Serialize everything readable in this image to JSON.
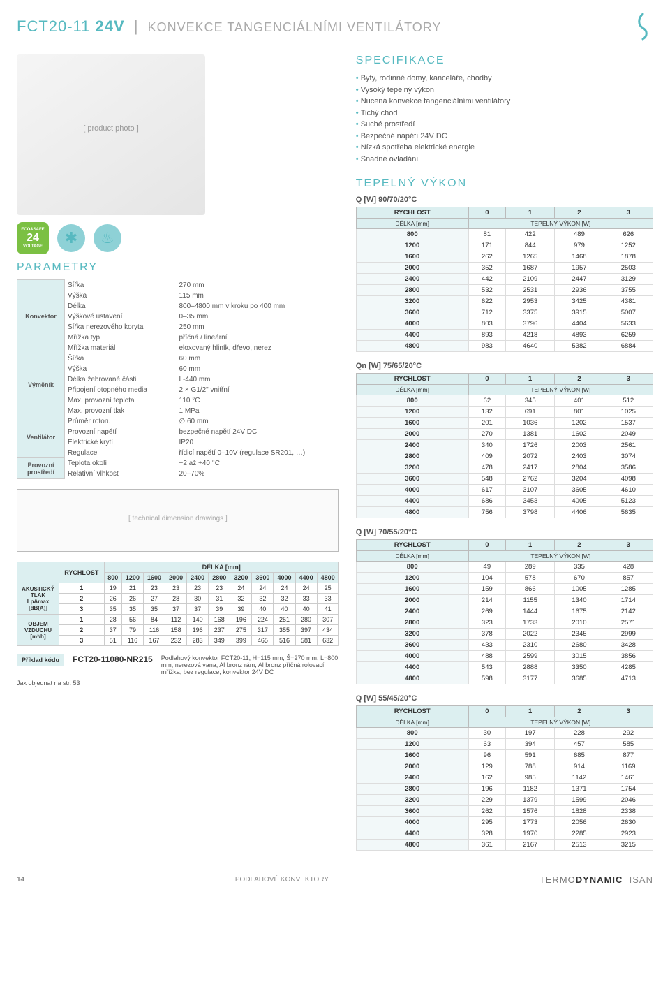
{
  "header": {
    "model": "FCT20-11",
    "voltage": "24V",
    "subtitle": "KONVEKCE TANGENCIÁLNÍMI VENTILÁTORY"
  },
  "spec": {
    "heading": "SPECIFIKACE",
    "items": [
      "Byty, rodinné domy, kanceláře, chodby",
      "Vysoký tepelný výkon",
      "Nucená konvekce tangenciálními ventilátory",
      "Tichý chod",
      "Suché prostředí",
      "Bezpečné napětí 24V DC",
      "Nízká spotřeba elektrické energie",
      "Snadné ovládání"
    ]
  },
  "badges": {
    "eco_top": "ECO&SAFE",
    "eco_num": "24",
    "eco_bot": "VOLTAGE"
  },
  "params": {
    "heading": "PARAMETRY",
    "groups": [
      {
        "label": "Konvektor",
        "rows": [
          [
            "Šířka",
            "270 mm"
          ],
          [
            "Výška",
            "115 mm"
          ],
          [
            "Délka",
            "800–4800 mm v kroku po 400 mm"
          ],
          [
            "Výškové ustavení",
            "0–35 mm"
          ],
          [
            "Šířka nerezového koryta",
            "250 mm"
          ],
          [
            "Mřížka typ",
            "příčná / lineární"
          ],
          [
            "Mřížka materiál",
            "eloxovaný hliník, dřevo, nerez"
          ]
        ]
      },
      {
        "label": "Výměník",
        "rows": [
          [
            "Šířka",
            "60 mm"
          ],
          [
            "Výška",
            "60 mm"
          ],
          [
            "Délka žebrované části",
            "L-440 mm"
          ],
          [
            "Připojení otopného media",
            "2 × G1/2\" vnitřní"
          ],
          [
            "Max. provozní teplota",
            "110 °C"
          ],
          [
            "Max. provozní tlak",
            "1 MPa"
          ]
        ]
      },
      {
        "label": "Ventilátor",
        "rows": [
          [
            "Průměr rotoru",
            "∅ 60 mm"
          ],
          [
            "Provozní napětí",
            "bezpečné napětí 24V DC"
          ],
          [
            "Elektrické krytí",
            "IP20"
          ],
          [
            "Regulace",
            "řídicí napětí 0–10V (regulace SR201, …)"
          ]
        ]
      },
      {
        "label": "Provozní prostředí",
        "rows": [
          [
            "Teplota okolí",
            "+2 až +40 °C"
          ],
          [
            "Relativní vlhkost",
            "20–70%"
          ]
        ]
      }
    ]
  },
  "diagram_placeholder": "[ technical dimension drawings ]",
  "acoustic": {
    "row_labels": [
      "AKUSTICKÝ TLAK LpAmax [dB(A)]",
      "OBJEM VZDUCHU [m³/h]"
    ],
    "speed_label": "RYCHLOST",
    "len_label": "DÉLKA [mm]",
    "lengths": [
      "800",
      "1200",
      "1600",
      "2000",
      "2400",
      "2800",
      "3200",
      "3600",
      "4000",
      "4400",
      "4800"
    ],
    "speeds": [
      "1",
      "2",
      "3",
      "1",
      "2",
      "3"
    ],
    "data": [
      [
        19,
        21,
        23,
        23,
        23,
        23,
        24,
        24,
        24,
        24,
        25
      ],
      [
        26,
        26,
        27,
        28,
        30,
        31,
        32,
        32,
        32,
        33,
        33
      ],
      [
        35,
        35,
        35,
        37,
        37,
        39,
        39,
        40,
        40,
        40,
        41
      ],
      [
        28,
        56,
        84,
        112,
        140,
        168,
        196,
        224,
        251,
        280,
        307
      ],
      [
        37,
        79,
        116,
        158,
        196,
        237,
        275,
        317,
        355,
        397,
        434
      ],
      [
        51,
        116,
        167,
        232,
        283,
        349,
        399,
        465,
        516,
        581,
        632
      ]
    ]
  },
  "code": {
    "label": "Příklad kódu",
    "code": "FCT20-11080-NR215",
    "desc": "Podlahový konvektor FCT20-11, H=115 mm, Š=270 mm, L=800 mm, nerezová vana, Al bronz rám, Al bronz příčná rolovací mřížka, bez regulace, konvektor 24V DC"
  },
  "note": "Jak objednat na str. 53",
  "tepelny_heading": "TEPELNÝ VÝKON",
  "q_tables": [
    {
      "title": "Q [W] 90/70/20°C",
      "row1": [
        "RYCHLOST",
        "0",
        "1",
        "2",
        "3"
      ],
      "row2": [
        "DÉLKA [mm]",
        "TEPELNÝ VÝKON [W]"
      ],
      "rows": [
        [
          "800",
          81,
          422,
          489,
          626
        ],
        [
          "1200",
          171,
          844,
          979,
          1252
        ],
        [
          "1600",
          262,
          1265,
          1468,
          1878
        ],
        [
          "2000",
          352,
          1687,
          1957,
          2503
        ],
        [
          "2400",
          442,
          2109,
          2447,
          3129
        ],
        [
          "2800",
          532,
          2531,
          2936,
          3755
        ],
        [
          "3200",
          622,
          2953,
          3425,
          4381
        ],
        [
          "3600",
          712,
          3375,
          3915,
          5007
        ],
        [
          "4000",
          803,
          3796,
          4404,
          5633
        ],
        [
          "4400",
          893,
          4218,
          4893,
          6259
        ],
        [
          "4800",
          983,
          4640,
          5382,
          6884
        ]
      ]
    },
    {
      "title": "Qn [W] 75/65/20°C",
      "row1": [
        "RYCHLOST",
        "0",
        "1",
        "2",
        "3"
      ],
      "row2": [
        "DÉLKA [mm]",
        "TEPELNÝ VÝKON [W]"
      ],
      "rows": [
        [
          "800",
          62,
          345,
          401,
          512
        ],
        [
          "1200",
          132,
          691,
          801,
          1025
        ],
        [
          "1600",
          201,
          1036,
          1202,
          1537
        ],
        [
          "2000",
          270,
          1381,
          1602,
          2049
        ],
        [
          "2400",
          340,
          1726,
          2003,
          2561
        ],
        [
          "2800",
          409,
          2072,
          2403,
          3074
        ],
        [
          "3200",
          478,
          2417,
          2804,
          3586
        ],
        [
          "3600",
          548,
          2762,
          3204,
          4098
        ],
        [
          "4000",
          617,
          3107,
          3605,
          4610
        ],
        [
          "4400",
          686,
          3453,
          4005,
          5123
        ],
        [
          "4800",
          756,
          3798,
          4406,
          5635
        ]
      ]
    },
    {
      "title": "Q [W] 70/55/20°C",
      "row1": [
        "RYCHLOST",
        "0",
        "1",
        "2",
        "3"
      ],
      "row2": [
        "DÉLKA [mm]",
        "TEPELNÝ VÝKON [W]"
      ],
      "rows": [
        [
          "800",
          49,
          289,
          335,
          428
        ],
        [
          "1200",
          104,
          578,
          670,
          857
        ],
        [
          "1600",
          159,
          866,
          1005,
          1285
        ],
        [
          "2000",
          214,
          1155,
          1340,
          1714
        ],
        [
          "2400",
          269,
          1444,
          1675,
          2142
        ],
        [
          "2800",
          323,
          1733,
          2010,
          2571
        ],
        [
          "3200",
          378,
          2022,
          2345,
          2999
        ],
        [
          "3600",
          433,
          2310,
          2680,
          3428
        ],
        [
          "4000",
          488,
          2599,
          3015,
          3856
        ],
        [
          "4400",
          543,
          2888,
          3350,
          4285
        ],
        [
          "4800",
          598,
          3177,
          3685,
          4713
        ]
      ]
    },
    {
      "title": "Q [W] 55/45/20°C",
      "row1": [
        "RYCHLOST",
        "0",
        "1",
        "2",
        "3"
      ],
      "row2": [
        "DÉLKA [mm]",
        "TEPELNÝ VÝKON [W]"
      ],
      "rows": [
        [
          "800",
          30,
          197,
          228,
          292
        ],
        [
          "1200",
          63,
          394,
          457,
          585
        ],
        [
          "1600",
          96,
          591,
          685,
          877
        ],
        [
          "2000",
          129,
          788,
          914,
          1169
        ],
        [
          "2400",
          162,
          985,
          1142,
          1461
        ],
        [
          "2800",
          196,
          1182,
          1371,
          1754
        ],
        [
          "3200",
          229,
          1379,
          1599,
          2046
        ],
        [
          "3600",
          262,
          1576,
          1828,
          2338
        ],
        [
          "4000",
          295,
          1773,
          2056,
          2630
        ],
        [
          "4400",
          328,
          1970,
          2285,
          2923
        ],
        [
          "4800",
          361,
          2167,
          2513,
          3215
        ]
      ]
    }
  ],
  "footer": {
    "page": "14",
    "mid": "PODLAHOVÉ KONVEKTORY",
    "brand1": "TERMO",
    "brand2": "DYNAMIC",
    "isan": "ISAN"
  },
  "colors": {
    "accent": "#56b9c0",
    "table_header_bg": "#dceff0",
    "grid": "#dddddd",
    "text": "#555555"
  }
}
